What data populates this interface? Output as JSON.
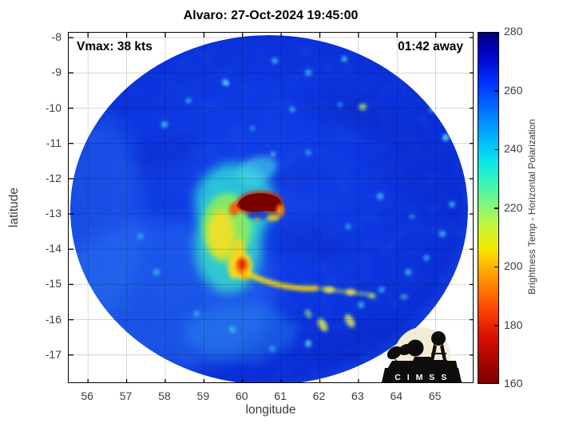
{
  "figure": {
    "title": "Alvaro: 27-Oct-2024 19:45:00",
    "annotations": {
      "vmax": "Vmax: 38 kts",
      "time_away": "01:42 away"
    },
    "xlabel": "longitude",
    "ylabel": "latitude",
    "logo_text": "C I M S S"
  },
  "chart_data": {
    "type": "heatmap",
    "title": "Alvaro: 27-Oct-2024 19:45:00",
    "storm_name": "Alvaro",
    "datetime": "27-Oct-2024 19:45:00",
    "vmax_kts": 38,
    "time_offset_label": "01:42 away",
    "xlabel": "longitude",
    "ylabel": "latitude",
    "xlim": [
      55.5,
      66.0
    ],
    "ylim": [
      -17.82,
      -7.86
    ],
    "x_ticks": [
      56,
      57,
      58,
      59,
      60,
      61,
      62,
      63,
      64,
      65
    ],
    "y_ticks": [
      -8,
      -9,
      -10,
      -11,
      -12,
      -13,
      -14,
      -15,
      -16,
      -17
    ],
    "grid": true,
    "colorbar": {
      "label": "Brightness Temp - Horizontal Polarization",
      "min": 160,
      "max": 280,
      "ticks": [
        160,
        180,
        200,
        220,
        240,
        260,
        280
      ],
      "colormap": "jet-reversed",
      "stops": [
        [
          0.0,
          "#7f0000"
        ],
        [
          0.06,
          "#a50500"
        ],
        [
          0.13,
          "#d80f00"
        ],
        [
          0.2,
          "#fa3c00"
        ],
        [
          0.27,
          "#ff7a00"
        ],
        [
          0.33,
          "#ffb200"
        ],
        [
          0.385,
          "#f6e800"
        ],
        [
          0.45,
          "#c3f63c"
        ],
        [
          0.51,
          "#7cf87c"
        ],
        [
          0.57,
          "#3df4b4"
        ],
        [
          0.63,
          "#0ce6ea"
        ],
        [
          0.7,
          "#00b4ff"
        ],
        [
          0.78,
          "#0072ff"
        ],
        [
          0.86,
          "#0030ff"
        ],
        [
          0.93,
          "#0008cc"
        ],
        [
          1.0,
          "#000084"
        ]
      ]
    },
    "swath": {
      "shape": "circular microwave swath",
      "center_lon": 60.75,
      "center_lat": -12.85,
      "radius_deg": 5.1,
      "background_temp_K": 262
    },
    "features": [
      {
        "name": "eyewall-warm-core",
        "lon": 60.35,
        "lat": -12.7,
        "temp_K": 165,
        "desc": "dark red crescent of deep convection north of center"
      },
      {
        "name": "west-rainband-shield",
        "lon": 59.5,
        "lat": -13.1,
        "temp_K": 205,
        "desc": "cyan-green-yellow convective shield west of center"
      },
      {
        "name": "south-convective-spot",
        "lon": 60.0,
        "lat": -14.45,
        "temp_K": 185,
        "desc": "orange-red cell south of center"
      },
      {
        "name": "south-rainband-arc",
        "lon": 60.8,
        "lat": -14.85,
        "temp_K": 210,
        "desc": "yellow arc band curving southeast"
      },
      {
        "name": "scattered-shallow-cells",
        "temp_K": 240,
        "desc": "cyan speckles scattered through blue background"
      }
    ],
    "colors": {
      "swath_base_blue": "#0d37e2",
      "eye_core_red": "#7a0000",
      "rainband_yellow": "#ffdf00",
      "shield_cyan": "#2fd8d8",
      "logo_cream": "#f3ecd4"
    }
  }
}
